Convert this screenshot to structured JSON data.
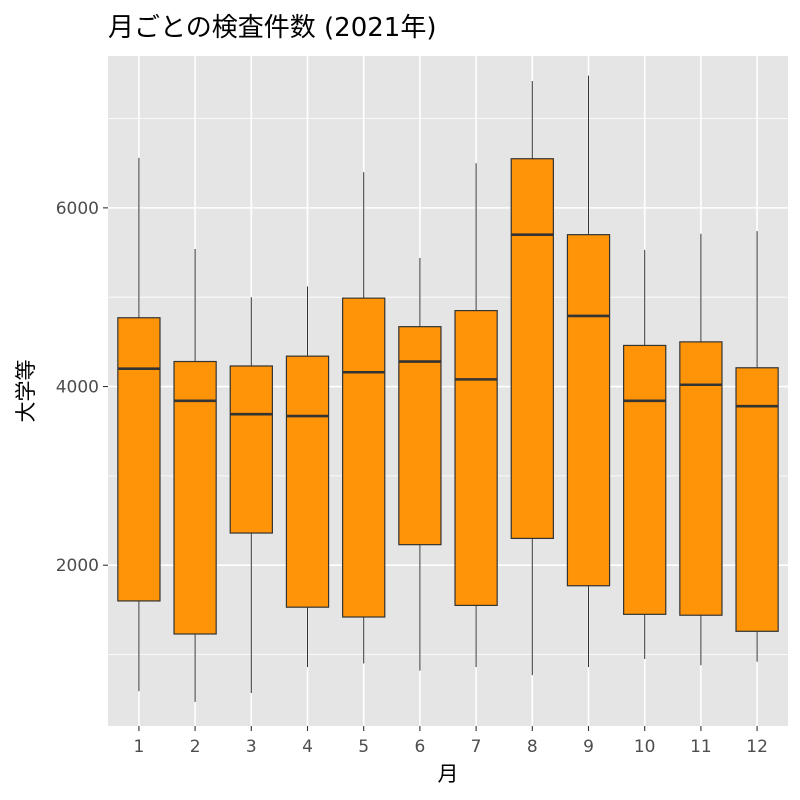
{
  "chart_data": {
    "type": "boxplot",
    "title": "月ごとの検査件数 (2021年)",
    "xlabel": "月",
    "ylabel": "大学等",
    "categories": [
      "1",
      "2",
      "3",
      "4",
      "5",
      "6",
      "7",
      "8",
      "9",
      "10",
      "11",
      "12"
    ],
    "y_ticks": [
      "2000",
      "4000",
      "6000"
    ],
    "ylim": [
      200,
      7700
    ],
    "grid": true,
    "box_fill": "#ff9408",
    "box_stroke": "#333333",
    "panel_background": "#e5e5e5",
    "boxes": [
      {
        "month": "1",
        "min": 590,
        "q1": 1600,
        "median": 4200,
        "q3": 4770,
        "max": 6560
      },
      {
        "month": "2",
        "min": 470,
        "q1": 1230,
        "median": 3840,
        "q3": 4280,
        "max": 5540
      },
      {
        "month": "3",
        "min": 570,
        "q1": 2360,
        "median": 3690,
        "q3": 4230,
        "max": 5000
      },
      {
        "month": "4",
        "min": 860,
        "q1": 1530,
        "median": 3670,
        "q3": 4340,
        "max": 5120
      },
      {
        "month": "5",
        "min": 900,
        "q1": 1420,
        "median": 4160,
        "q3": 4990,
        "max": 6400
      },
      {
        "month": "6",
        "min": 820,
        "q1": 2230,
        "median": 4280,
        "q3": 4670,
        "max": 5440
      },
      {
        "month": "7",
        "min": 860,
        "q1": 1550,
        "median": 4080,
        "q3": 4850,
        "max": 6500
      },
      {
        "month": "8",
        "min": 770,
        "q1": 2300,
        "median": 5700,
        "q3": 6550,
        "max": 7420
      },
      {
        "month": "9",
        "min": 860,
        "q1": 1770,
        "median": 4790,
        "q3": 5700,
        "max": 7480
      },
      {
        "month": "10",
        "min": 950,
        "q1": 1450,
        "median": 3840,
        "q3": 4460,
        "max": 5530
      },
      {
        "month": "11",
        "min": 880,
        "q1": 1440,
        "median": 4020,
        "q3": 4500,
        "max": 5710
      },
      {
        "month": "12",
        "min": 920,
        "q1": 1260,
        "median": 3780,
        "q3": 4210,
        "max": 5740
      }
    ]
  }
}
